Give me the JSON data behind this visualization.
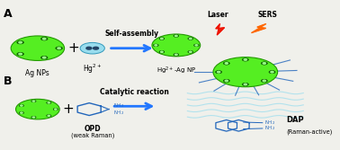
{
  "bg_color": "#f0f0eb",
  "green_bright": "#55ee22",
  "green_edge": "#229900",
  "green_dark_dot": "#116600",
  "teal_fill": "#99ddee",
  "teal_edge": "#3399bb",
  "blue_arrow": "#2277ff",
  "blue_mol": "#2266bb",
  "red_bolt": "#ee1100",
  "orange_bolt": "#ff6600",
  "white": "#ffffff",
  "black": "#000000",
  "label_A": "A",
  "label_B": "B",
  "text_AgNPs": "Ag NPs",
  "text_Hg": "Hg2+",
  "text_self_assembly": "Self-assembly",
  "text_hg_ag_np": "Hg2+-Ag NP",
  "text_catalytic": "Catalytic reaction",
  "text_OPD": "OPD",
  "text_weak_raman": "(weak Raman)",
  "text_laser": "Laser",
  "text_SERS": "SERS",
  "text_DAP": "DAP",
  "text_raman_active": "(Raman-active)",
  "figw": 3.78,
  "figh": 1.67,
  "dpi": 100
}
